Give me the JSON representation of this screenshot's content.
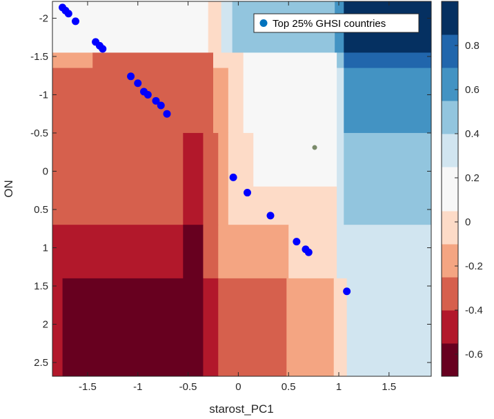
{
  "chart_data": {
    "type": "heatmap",
    "xlabel": "starost_PC1",
    "ylabel": "ON",
    "xlim": [
      -1.85,
      1.92
    ],
    "ylim": [
      2.68,
      -2.22
    ],
    "y_reversed": true,
    "xticks": [
      -1.5,
      -1,
      -0.5,
      0,
      0.5,
      1,
      1.5
    ],
    "xtick_labels": [
      "-1.5",
      "-1",
      "-0.5",
      "0",
      "0.5",
      "1",
      "1.5"
    ],
    "yticks": [
      -2,
      -1.5,
      -1,
      -0.5,
      0,
      0.5,
      1,
      1.5,
      2,
      2.5
    ],
    "ytick_labels": [
      "-2",
      "-1.5",
      "-1",
      "-0.5",
      "0",
      "0.5",
      "1",
      "1.5",
      "2",
      "2.5"
    ],
    "grid": false,
    "colorbar": {
      "range": [
        -0.7,
        1.0
      ],
      "ticks": [
        -0.6,
        -0.4,
        -0.2,
        0,
        0.2,
        0.4,
        0.6,
        0.8
      ],
      "tick_labels": [
        "-0.6",
        "-0.4",
        "-0.2",
        "0",
        "0.2",
        "0.4",
        "0.6",
        "0.8"
      ],
      "bins": [
        {
          "lo": -0.7,
          "hi": -0.55,
          "color": "#67001f"
        },
        {
          "lo": -0.55,
          "hi": -0.4,
          "color": "#b2182b"
        },
        {
          "lo": -0.4,
          "hi": -0.25,
          "color": "#d6604d"
        },
        {
          "lo": -0.25,
          "hi": -0.1,
          "color": "#f4a582"
        },
        {
          "lo": -0.1,
          "hi": 0.05,
          "color": "#fddbc7"
        },
        {
          "lo": 0.05,
          "hi": 0.25,
          "color": "#f7f7f7"
        },
        {
          "lo": 0.25,
          "hi": 0.4,
          "color": "#d1e5f0"
        },
        {
          "lo": 0.4,
          "hi": 0.55,
          "color": "#92c5de"
        },
        {
          "lo": 0.55,
          "hi": 0.7,
          "color": "#4393c3"
        },
        {
          "lo": 0.7,
          "hi": 0.85,
          "color": "#2166ac"
        },
        {
          "lo": 0.85,
          "hi": 1.0,
          "color": "#053061"
        }
      ]
    },
    "regions": [
      {
        "x": [
          -1.85,
          -0.3
        ],
        "y": [
          -2.22,
          -1.55
        ],
        "value": 0.15
      },
      {
        "x": [
          -0.3,
          -0.17
        ],
        "y": [
          -2.22,
          -1.55
        ],
        "value": 0.0
      },
      {
        "x": [
          -0.17,
          -0.06
        ],
        "y": [
          -2.22,
          -1.55
        ],
        "value": 0.3
      },
      {
        "x": [
          -0.06,
          0.96
        ],
        "y": [
          -2.22,
          -1.55
        ],
        "value": 0.45
      },
      {
        "x": [
          0.96,
          1.05
        ],
        "y": [
          -2.22,
          -1.55
        ],
        "value": 0.6
      },
      {
        "x": [
          1.05,
          1.92
        ],
        "y": [
          -2.22,
          -1.55
        ],
        "value": 0.92
      },
      {
        "x": [
          -1.85,
          -1.45
        ],
        "y": [
          -1.55,
          -1.35
        ],
        "value": -0.2
      },
      {
        "x": [
          -1.45,
          -0.25
        ],
        "y": [
          -1.55,
          -1.35
        ],
        "value": -0.3
      },
      {
        "x": [
          -0.25,
          0.05
        ],
        "y": [
          -1.55,
          -1.35
        ],
        "value": 0.0
      },
      {
        "x": [
          0.05,
          0.98
        ],
        "y": [
          -1.55,
          -1.35
        ],
        "value": 0.15
      },
      {
        "x": [
          0.98,
          1.05
        ],
        "y": [
          -1.55,
          -1.35
        ],
        "value": 0.45
      },
      {
        "x": [
          1.05,
          1.92
        ],
        "y": [
          -1.55,
          -1.35
        ],
        "value": 0.75
      },
      {
        "x": [
          -1.85,
          -0.25
        ],
        "y": [
          -1.35,
          -0.5
        ],
        "value": -0.3
      },
      {
        "x": [
          -0.25,
          -0.1
        ],
        "y": [
          -1.35,
          -0.5
        ],
        "value": -0.2
      },
      {
        "x": [
          -0.1,
          0.05
        ],
        "y": [
          -1.35,
          -0.5
        ],
        "value": 0.0
      },
      {
        "x": [
          0.05,
          0.98
        ],
        "y": [
          -1.35,
          -0.5
        ],
        "value": 0.15
      },
      {
        "x": [
          0.98,
          1.05
        ],
        "y": [
          -1.35,
          -0.5
        ],
        "value": 0.3
      },
      {
        "x": [
          1.05,
          1.92
        ],
        "y": [
          -1.35,
          -0.5
        ],
        "value": 0.6
      },
      {
        "x": [
          -1.85,
          -0.55
        ],
        "y": [
          -0.5,
          0.7
        ],
        "value": -0.3
      },
      {
        "x": [
          -0.55,
          -0.35
        ],
        "y": [
          -0.5,
          0.7
        ],
        "value": -0.45
      },
      {
        "x": [
          -0.35,
          -0.2
        ],
        "y": [
          -0.5,
          0.7
        ],
        "value": -0.3
      },
      {
        "x": [
          -0.2,
          -0.1
        ],
        "y": [
          -0.5,
          0.7
        ],
        "value": -0.2
      },
      {
        "x": [
          -0.1,
          0.15
        ],
        "y": [
          -0.5,
          0.2
        ],
        "value": 0.0
      },
      {
        "x": [
          0.15,
          0.98
        ],
        "y": [
          -0.5,
          0.2
        ],
        "value": 0.15
      },
      {
        "x": [
          -0.1,
          0.98
        ],
        "y": [
          0.2,
          0.7
        ],
        "value": 0.0
      },
      {
        "x": [
          0.98,
          1.05
        ],
        "y": [
          -0.5,
          0.7
        ],
        "value": 0.3
      },
      {
        "x": [
          1.05,
          1.92
        ],
        "y": [
          -0.5,
          0.7
        ],
        "value": 0.45
      },
      {
        "x": [
          -1.85,
          -0.55
        ],
        "y": [
          0.7,
          1.4
        ],
        "value": -0.45
      },
      {
        "x": [
          -0.55,
          -0.35
        ],
        "y": [
          0.7,
          1.4
        ],
        "value": -0.6
      },
      {
        "x": [
          -0.35,
          -0.2
        ],
        "y": [
          0.7,
          1.4
        ],
        "value": -0.3
      },
      {
        "x": [
          -0.2,
          0.5
        ],
        "y": [
          0.7,
          1.4
        ],
        "value": -0.2
      },
      {
        "x": [
          0.5,
          0.98
        ],
        "y": [
          0.7,
          1.4
        ],
        "value": 0.0
      },
      {
        "x": [
          0.98,
          1.92
        ],
        "y": [
          0.7,
          1.4
        ],
        "value": 0.3
      },
      {
        "x": [
          -1.85,
          -1.75
        ],
        "y": [
          1.4,
          2.68
        ],
        "value": -0.45
      },
      {
        "x": [
          -1.75,
          -0.35
        ],
        "y": [
          1.4,
          2.68
        ],
        "value": -0.6
      },
      {
        "x": [
          -0.35,
          -0.2
        ],
        "y": [
          1.4,
          2.68
        ],
        "value": -0.45
      },
      {
        "x": [
          -0.2,
          0.48
        ],
        "y": [
          1.4,
          2.68
        ],
        "value": -0.3
      },
      {
        "x": [
          0.48,
          0.95
        ],
        "y": [
          1.4,
          2.68
        ],
        "value": -0.2
      },
      {
        "x": [
          0.95,
          1.08
        ],
        "y": [
          1.4,
          2.68
        ],
        "value": 0.0
      },
      {
        "x": [
          1.08,
          1.92
        ],
        "y": [
          1.4,
          2.68
        ],
        "value": 0.3
      }
    ],
    "series": [
      {
        "name": "Top 25% GHSI countries",
        "type": "scatter",
        "color": "#0000ff",
        "x": [
          -1.75,
          -1.72,
          -1.69,
          -1.62,
          -1.42,
          -1.38,
          -1.35,
          -1.07,
          -1.0,
          -0.94,
          -0.9,
          -0.82,
          -0.77,
          -0.71,
          -0.05,
          0.09,
          0.32,
          0.58,
          0.67,
          0.7,
          1.08
        ],
        "y": [
          -2.14,
          -2.1,
          -2.06,
          -1.96,
          -1.69,
          -1.64,
          -1.6,
          -1.24,
          -1.15,
          -1.04,
          -1.0,
          -0.92,
          -0.86,
          -0.75,
          0.08,
          0.28,
          0.58,
          0.92,
          1.02,
          1.06,
          1.57
        ]
      }
    ],
    "annotations": [
      {
        "x": 0.76,
        "y": -0.31,
        "color": "#7a8a6a"
      }
    ],
    "legend": {
      "position": "top-right",
      "entries": [
        "Top 25% GHSI countries"
      ]
    }
  }
}
